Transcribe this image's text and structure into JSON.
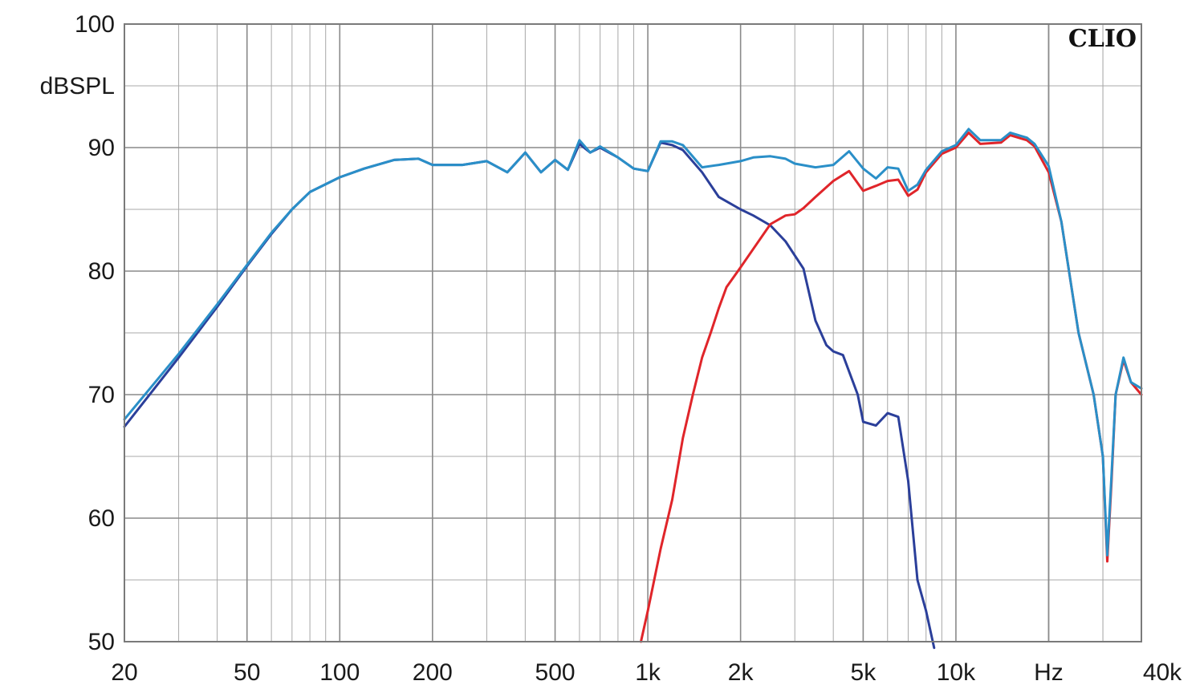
{
  "chart_data": {
    "type": "line",
    "title": "",
    "brand": "CLIO",
    "xlabel": "",
    "ylabel": "dBSPL",
    "x_scale": "log",
    "xlim": [
      20,
      40000
    ],
    "ylim": [
      50,
      100
    ],
    "grid": true,
    "y_ticks": [
      100,
      90,
      80,
      70,
      60,
      50
    ],
    "x_tick_labels": [
      {
        "value": 20,
        "label": "20"
      },
      {
        "value": 50,
        "label": "50"
      },
      {
        "value": 100,
        "label": "100"
      },
      {
        "value": 200,
        "label": "200"
      },
      {
        "value": 500,
        "label": "500"
      },
      {
        "value": 1000,
        "label": "1k"
      },
      {
        "value": 2000,
        "label": "2k"
      },
      {
        "value": 5000,
        "label": "5k"
      },
      {
        "value": 10000,
        "label": "10k"
      },
      {
        "value": 20000,
        "label": "Hz"
      },
      {
        "value": 40000,
        "label": "40k"
      }
    ],
    "series": [
      {
        "color": "#2b3f9a",
        "x": [
          20,
          30,
          40,
          50,
          60,
          70,
          80,
          100,
          120,
          150,
          180,
          200,
          250,
          300,
          350,
          400,
          450,
          500,
          550,
          600,
          650,
          700,
          800,
          900,
          1000,
          1100,
          1200,
          1300,
          1500,
          1700,
          2000,
          2200,
          2500,
          2800,
          3200,
          3500,
          3800,
          4000,
          4300,
          4800,
          5000,
          5500,
          6000,
          6500,
          7000,
          7500,
          8000,
          8500
        ],
        "values": [
          67.4,
          73.0,
          77.1,
          80.4,
          83.0,
          85.0,
          86.4,
          87.6,
          88.3,
          89.0,
          89.1,
          88.6,
          88.6,
          88.9,
          88.0,
          89.6,
          88.0,
          89.0,
          88.2,
          90.3,
          89.6,
          90.0,
          89.2,
          88.3,
          88.1,
          90.4,
          90.2,
          89.8,
          88.0,
          86.0,
          85.0,
          84.5,
          83.7,
          82.4,
          80.2,
          76.0,
          74.0,
          73.5,
          73.2,
          70.0,
          67.8,
          67.5,
          68.5,
          68.2,
          63.0,
          55.0,
          52.5,
          49.5
        ]
      },
      {
        "color": "#e0252a",
        "x": [
          950,
          1000,
          1100,
          1200,
          1300,
          1400,
          1500,
          1600,
          1700,
          1800,
          2000,
          2200,
          2500,
          2800,
          3000,
          3200,
          3500,
          4000,
          4500,
          5000,
          5500,
          6000,
          6500,
          7000,
          7500,
          8000,
          9000,
          10000,
          11000,
          12000,
          14000,
          15000,
          17000,
          18000,
          20000,
          22000,
          25000,
          28000,
          30000,
          31000,
          32000,
          33000,
          35000,
          37000,
          40000
        ],
        "values": [
          50.0,
          52.5,
          57.5,
          61.5,
          66.5,
          70.0,
          73.0,
          75.0,
          77.0,
          78.7,
          80.3,
          81.8,
          83.8,
          84.5,
          84.6,
          85.1,
          86.0,
          87.3,
          88.1,
          86.5,
          86.9,
          87.3,
          87.4,
          86.1,
          86.6,
          88.0,
          89.5,
          90.0,
          91.2,
          90.3,
          90.4,
          91.0,
          90.6,
          90.1,
          88.0,
          84.0,
          75.0,
          70.0,
          65.0,
          56.5,
          63.0,
          70.0,
          72.8,
          71.0,
          70.0
        ]
      },
      {
        "color": "#2a8fc8",
        "x": [
          20,
          30,
          40,
          50,
          60,
          70,
          80,
          100,
          120,
          150,
          180,
          200,
          250,
          300,
          350,
          400,
          450,
          500,
          550,
          600,
          650,
          700,
          800,
          900,
          1000,
          1100,
          1200,
          1300,
          1500,
          1700,
          2000,
          2200,
          2500,
          2800,
          3000,
          3500,
          4000,
          4500,
          5000,
          5500,
          6000,
          6500,
          7000,
          7500,
          8000,
          9000,
          10000,
          11000,
          12000,
          14000,
          15000,
          17000,
          18000,
          20000,
          22000,
          25000,
          28000,
          30000,
          31000,
          32000,
          33000,
          35000,
          37000,
          40000
        ],
        "values": [
          68.0,
          73.3,
          77.3,
          80.5,
          83.1,
          85.0,
          86.4,
          87.6,
          88.3,
          89.0,
          89.1,
          88.6,
          88.6,
          88.9,
          88.0,
          89.6,
          88.0,
          89.0,
          88.2,
          90.6,
          89.6,
          90.1,
          89.2,
          88.3,
          88.1,
          90.5,
          90.5,
          90.2,
          88.4,
          88.6,
          88.9,
          89.2,
          89.3,
          89.1,
          88.7,
          88.4,
          88.6,
          89.7,
          88.3,
          87.5,
          88.4,
          88.3,
          86.5,
          87.0,
          88.2,
          89.7,
          90.2,
          91.5,
          90.6,
          90.6,
          91.2,
          90.8,
          90.3,
          88.5,
          84.0,
          75.0,
          70.0,
          65.0,
          57.0,
          63.5,
          70.0,
          73.0,
          71.0,
          70.5
        ]
      }
    ]
  }
}
